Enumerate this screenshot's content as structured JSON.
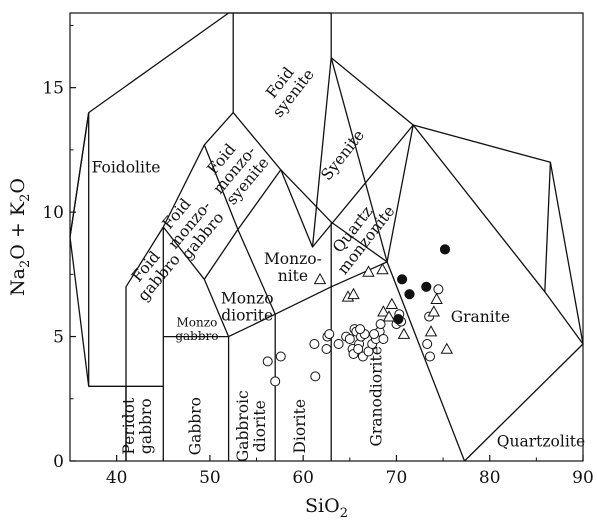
{
  "chart_data": {
    "type": "scatter",
    "title": "",
    "xlabel": "SiO2",
    "ylabel": "Na2O + K2O",
    "xlabel_parts": {
      "main": "SiO",
      "sub": "2"
    },
    "ylabel_parts": {
      "a": "Na",
      "a_sub": "2",
      "b": "O + K",
      "b_sub": "2",
      "c": "O"
    },
    "xlim": [
      35,
      90
    ],
    "ylim": [
      0,
      18
    ],
    "xticks": [
      40,
      50,
      60,
      70,
      80,
      90
    ],
    "yticks": [
      0,
      5,
      10,
      15
    ],
    "grid": false,
    "fields": [
      {
        "name": "Foidolite",
        "lines": [
          "Foidolite"
        ],
        "x": 41.0,
        "y": 11.8,
        "rot": 0
      },
      {
        "name": "Foid syenite",
        "lines": [
          "Foid",
          "syenite"
        ],
        "x": 58.2,
        "y": 15.0,
        "rot": -52
      },
      {
        "name": "Foid monzo-syenite",
        "lines": [
          "Foid",
          "monzo-",
          "syenite"
        ],
        "x": 52.6,
        "y": 11.7,
        "rot": -50
      },
      {
        "name": "Syenite",
        "lines": [
          "Syenite"
        ],
        "x": 64.2,
        "y": 12.3,
        "rot": -52
      },
      {
        "name": "Foid monzo-gabbro",
        "lines": [
          "Foid",
          "monzo-",
          "gabbro"
        ],
        "x": 47.8,
        "y": 9.5,
        "rot": -50
      },
      {
        "name": "Foid gabbro",
        "lines": [
          "Foid",
          "gabbro"
        ],
        "x": 43.8,
        "y": 7.6,
        "rot": -50
      },
      {
        "name": "Quartz monzonite",
        "lines": [
          "Quartz",
          "monzonite"
        ],
        "x": 66.0,
        "y": 9.1,
        "rot": -52
      },
      {
        "name": "Monzonite",
        "lines": [
          "Monzo-",
          "nite"
        ],
        "x": 58.9,
        "y": 7.8,
        "rot": 0
      },
      {
        "name": "Monzodiorite",
        "lines": [
          "Monzo",
          "diorite"
        ],
        "x": 54.0,
        "y": 6.2,
        "rot": 0
      },
      {
        "name": "Monzogabbro",
        "lines": [
          "Monzo",
          "gabbro"
        ],
        "x": 48.6,
        "y": 5.3,
        "rot": 0,
        "small": true
      },
      {
        "name": "Peridot gabbro",
        "lines": [
          "Peridot",
          "gabbro"
        ],
        "x": 42.2,
        "y": 1.4,
        "rot": -90
      },
      {
        "name": "Gabbro",
        "lines": [
          "Gabbro"
        ],
        "x": 48.4,
        "y": 1.4,
        "rot": -90
      },
      {
        "name": "Gabbroic diorite",
        "lines": [
          "Gabbroic",
          "diorite"
        ],
        "x": 54.4,
        "y": 1.4,
        "rot": -90
      },
      {
        "name": "Diorite",
        "lines": [
          "Diorite"
        ],
        "x": 59.6,
        "y": 1.4,
        "rot": -90
      },
      {
        "name": "Granodiorite",
        "lines": [
          "Granodiorite"
        ],
        "x": 67.8,
        "y": 2.6,
        "rot": -90
      },
      {
        "name": "Granite",
        "lines": [
          "Granite"
        ],
        "x": 79.0,
        "y": 5.8,
        "rot": 0
      },
      {
        "name": "Quartzolite",
        "lines": [
          "Quartzolite"
        ],
        "x": 85.5,
        "y": 0.8,
        "rot": 0
      }
    ],
    "series": [
      {
        "marker": "open-circle",
        "x": [
          56.2,
          57.0,
          57.6,
          61.3,
          61.2,
          62.5,
          62.6,
          62.8,
          63.8,
          64.6,
          65.0,
          65.3,
          65.5,
          65.7,
          65.4,
          66.0,
          66.4,
          66.2,
          66.6,
          67.0,
          67.4,
          67.8,
          68.2,
          68.6,
          66.1,
          65.9,
          67.6,
          68.3,
          70.0,
          70.3,
          70.5,
          73.3,
          73.5,
          73.6,
          74.5
        ],
        "y": [
          4.0,
          3.2,
          4.2,
          3.4,
          4.7,
          4.5,
          5.0,
          5.1,
          4.7,
          5.0,
          4.9,
          4.5,
          5.3,
          5.2,
          4.3,
          4.7,
          4.2,
          5.0,
          5.1,
          4.4,
          4.7,
          4.9,
          5.2,
          4.9,
          5.3,
          4.5,
          5.1,
          5.5,
          5.5,
          5.9,
          5.6,
          4.7,
          5.8,
          4.2,
          6.9
        ]
      },
      {
        "marker": "open-triangle",
        "x": [
          61.8,
          64.8,
          65.4,
          67.0,
          68.5,
          68.6,
          69.2,
          69.5,
          70.8,
          73.7,
          74.0,
          74.3,
          75.4
        ],
        "y": [
          7.3,
          6.6,
          6.7,
          7.6,
          7.7,
          6.0,
          5.8,
          6.3,
          5.1,
          5.2,
          6.0,
          6.5,
          4.5
        ]
      },
      {
        "marker": "filled-circle",
        "x": [
          70.2,
          70.6,
          71.4,
          73.2,
          75.2
        ],
        "y": [
          5.7,
          7.3,
          6.7,
          7.0,
          8.5
        ]
      }
    ]
  }
}
